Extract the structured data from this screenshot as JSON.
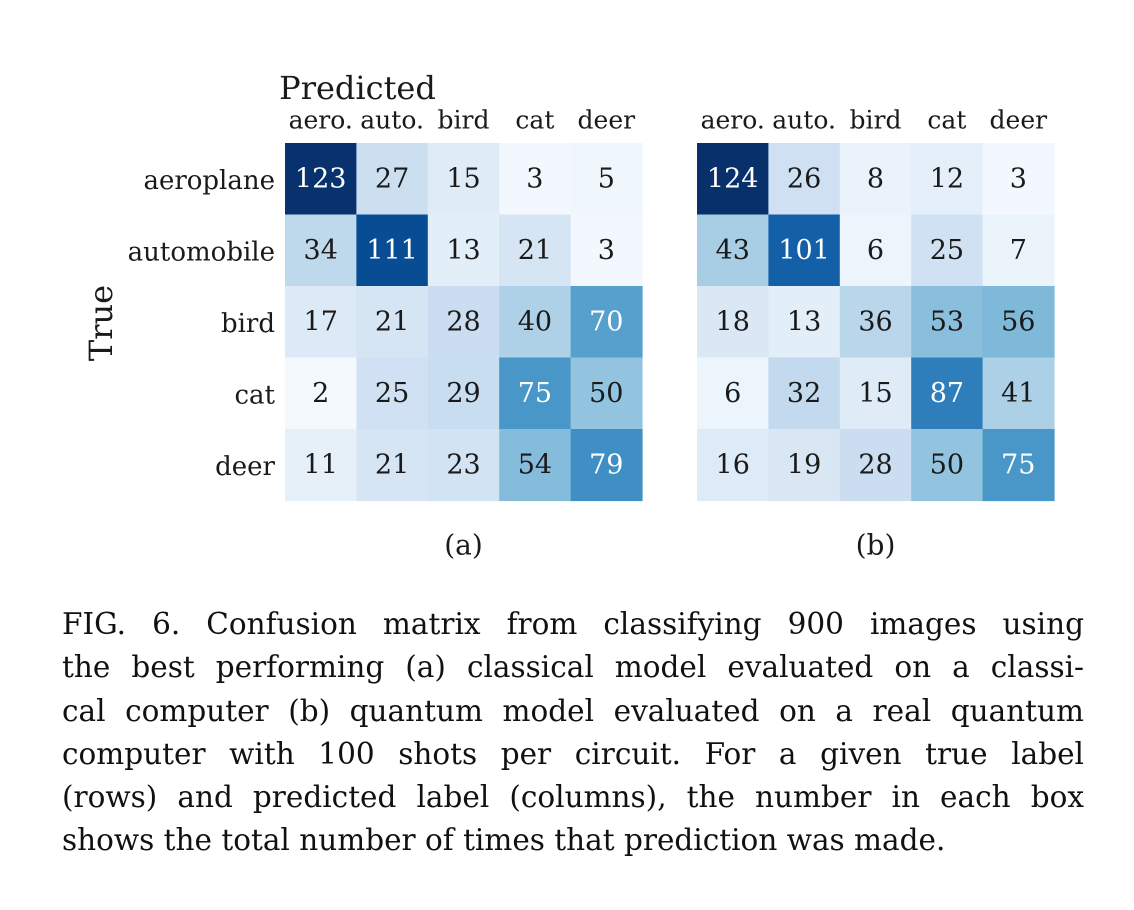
{
  "chart_data": [
    {
      "type": "heatmap",
      "panel_label": "(a)",
      "title": "Predicted",
      "ylabel": "True",
      "x_tick_labels": [
        "aero.",
        "auto.",
        "bird",
        "cat",
        "deer"
      ],
      "y_tick_labels": [
        "aeroplane",
        "automobile",
        "bird",
        "cat",
        "deer"
      ],
      "values": [
        [
          123,
          27,
          15,
          3,
          5
        ],
        [
          34,
          111,
          13,
          21,
          3
        ],
        [
          17,
          21,
          28,
          40,
          70
        ],
        [
          2,
          25,
          29,
          75,
          50
        ],
        [
          11,
          21,
          23,
          54,
          79
        ]
      ],
      "colormap": "Blues",
      "vmin": 0,
      "vmax": 124
    },
    {
      "type": "heatmap",
      "panel_label": "(b)",
      "x_tick_labels": [
        "aero.",
        "auto.",
        "bird",
        "cat",
        "deer"
      ],
      "values": [
        [
          124,
          26,
          8,
          12,
          3
        ],
        [
          43,
          101,
          6,
          25,
          7
        ],
        [
          18,
          13,
          36,
          53,
          56
        ],
        [
          6,
          32,
          15,
          87,
          41
        ],
        [
          16,
          19,
          28,
          50,
          75
        ]
      ],
      "colormap": "Blues",
      "vmin": 0,
      "vmax": 124
    }
  ],
  "colors": {
    "colormap_stops": [
      "#f7fbff",
      "#deebf7",
      "#c6dbef",
      "#9ecae1",
      "#6baed6",
      "#4292c6",
      "#2171b5",
      "#08519c",
      "#08306b"
    ],
    "dark_text": "#1a1a1a",
    "light_text": "#ffffff"
  },
  "caption": {
    "lines": [
      "FIG. 6.  Confusion matrix from classifying 900 images using",
      "the best performing (a) classical model evaluated on a classi-",
      "cal computer (b) quantum model evaluated on a real quantum",
      "computer with 100 shots per circuit.  For a given true label",
      "(rows) and predicted label (columns), the number in each box",
      "shows the total number of times that prediction was made."
    ]
  }
}
